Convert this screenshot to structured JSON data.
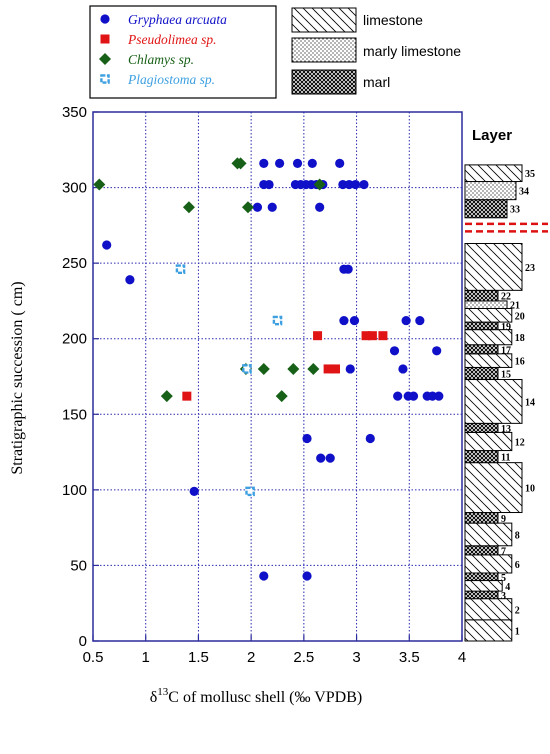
{
  "chart_data": {
    "type": "scatter",
    "title": "",
    "xlabel_prefix": "δ",
    "xlabel_sup": "13",
    "xlabel_rest": "C of mollusc shell (‰ VPDB)",
    "ylabel": "Stratigraphic succession ( cm)",
    "xlim": [
      0.5,
      4
    ],
    "ylim": [
      0,
      350
    ],
    "xticks": [
      "0.5",
      "1",
      "1.5",
      "2",
      "2.5",
      "3",
      "3.5",
      "4"
    ],
    "yticks": [
      "0",
      "50",
      "100",
      "150",
      "200",
      "250",
      "300",
      "350"
    ],
    "grid": true,
    "legend_position": "top-left",
    "series": [
      {
        "name": "Gryphaea arcuata",
        "marker": "circle",
        "color": "#1010c8",
        "points": [
          [
            0.63,
            262
          ],
          [
            0.85,
            239
          ],
          [
            1.46,
            99
          ],
          [
            2.12,
            43
          ],
          [
            2.53,
            43
          ],
          [
            2.53,
            134
          ],
          [
            2.66,
            121
          ],
          [
            2.75,
            121
          ],
          [
            3.13,
            134
          ],
          [
            2.06,
            287
          ],
          [
            2.2,
            287
          ],
          [
            2.65,
            287
          ],
          [
            2.12,
            302
          ],
          [
            2.17,
            302
          ],
          [
            2.42,
            302
          ],
          [
            2.47,
            302
          ],
          [
            2.52,
            302
          ],
          [
            2.57,
            302
          ],
          [
            2.62,
            302
          ],
          [
            2.68,
            302
          ],
          [
            2.87,
            302
          ],
          [
            2.93,
            302
          ],
          [
            2.99,
            302
          ],
          [
            3.07,
            302
          ],
          [
            2.12,
            316
          ],
          [
            2.27,
            316
          ],
          [
            2.44,
            316
          ],
          [
            2.58,
            316
          ],
          [
            2.84,
            316
          ],
          [
            2.88,
            246
          ],
          [
            2.92,
            246
          ],
          [
            2.88,
            212
          ],
          [
            2.98,
            212
          ],
          [
            3.47,
            212
          ],
          [
            3.6,
            212
          ],
          [
            3.36,
            192
          ],
          [
            3.76,
            192
          ],
          [
            3.44,
            180
          ],
          [
            2.94,
            180
          ],
          [
            3.39,
            162
          ],
          [
            3.49,
            162
          ],
          [
            3.54,
            162
          ],
          [
            3.67,
            162
          ],
          [
            3.72,
            162
          ],
          [
            3.78,
            162
          ]
        ]
      },
      {
        "name": "Pseudolimea sp.",
        "marker": "square",
        "color": "#e01414",
        "points": [
          [
            1.39,
            162
          ],
          [
            2.63,
            202
          ],
          [
            2.73,
            180
          ],
          [
            2.8,
            180
          ],
          [
            3.09,
            202
          ],
          [
            3.15,
            202
          ],
          [
            3.25,
            202
          ]
        ]
      },
      {
        "name": "Chlamys sp.",
        "marker": "diamond",
        "color": "#176017",
        "points": [
          [
            0.56,
            302
          ],
          [
            1.2,
            162
          ],
          [
            1.41,
            287
          ],
          [
            1.87,
            316
          ],
          [
            1.9,
            316
          ],
          [
            1.95,
            180
          ],
          [
            1.97,
            287
          ],
          [
            2.12,
            180
          ],
          [
            2.29,
            162
          ],
          [
            2.4,
            180
          ],
          [
            2.59,
            180
          ],
          [
            2.65,
            302
          ]
        ]
      },
      {
        "name": "Plagiostoma sp.",
        "marker": "open-square",
        "color": "#3ea0e0",
        "points": [
          [
            1.33,
            246
          ],
          [
            1.96,
            180
          ],
          [
            1.99,
            99
          ],
          [
            2.25,
            212
          ]
        ]
      }
    ]
  },
  "lithology_legend": {
    "limestone": "limestone",
    "marly_limestone": "marly limestone",
    "marl": "marl"
  },
  "stratigraphic_column": {
    "title": "Layer",
    "colors": {
      "limestone": "#000000",
      "marly_limestone": "#000000",
      "marl": "#000000",
      "boundary": "#dd1111"
    },
    "layers": [
      {
        "num": "1",
        "litho": "limestone",
        "bottom": 0,
        "top": 14,
        "extent": 0.78
      },
      {
        "num": "2",
        "litho": "limestone",
        "bottom": 14,
        "top": 28,
        "extent": 0.78
      },
      {
        "num": "3",
        "litho": "marl",
        "bottom": 28,
        "top": 33,
        "extent": 0.55
      },
      {
        "num": "4",
        "litho": "limestone",
        "bottom": 33,
        "top": 40,
        "extent": 0.62
      },
      {
        "num": "5",
        "litho": "marl",
        "bottom": 40,
        "top": 45,
        "extent": 0.55
      },
      {
        "num": "6",
        "litho": "limestone",
        "bottom": 45,
        "top": 57,
        "extent": 0.78
      },
      {
        "num": "7",
        "litho": "marl",
        "bottom": 57,
        "top": 63,
        "extent": 0.55
      },
      {
        "num": "8",
        "litho": "limestone",
        "bottom": 63,
        "top": 78,
        "extent": 0.78
      },
      {
        "num": "9",
        "litho": "marl",
        "bottom": 78,
        "top": 85,
        "extent": 0.55
      },
      {
        "num": "10",
        "litho": "limestone",
        "bottom": 85,
        "top": 118,
        "extent": 0.95
      },
      {
        "num": "11",
        "litho": "marl",
        "bottom": 118,
        "top": 126,
        "extent": 0.55
      },
      {
        "num": "12",
        "litho": "limestone",
        "bottom": 126,
        "top": 138,
        "extent": 0.78
      },
      {
        "num": "13",
        "litho": "marl",
        "bottom": 138,
        "top": 144,
        "extent": 0.55
      },
      {
        "num": "14",
        "litho": "limestone",
        "bottom": 144,
        "top": 173,
        "extent": 0.95
      },
      {
        "num": "15",
        "litho": "marl",
        "bottom": 173,
        "top": 181,
        "extent": 0.55
      },
      {
        "num": "16",
        "litho": "limestone",
        "bottom": 181,
        "top": 190,
        "extent": 0.78
      },
      {
        "num": "17",
        "litho": "marl",
        "bottom": 190,
        "top": 196,
        "extent": 0.55
      },
      {
        "num": "18",
        "litho": "limestone",
        "bottom": 196,
        "top": 206,
        "extent": 0.78
      },
      {
        "num": "19",
        "litho": "marl",
        "bottom": 206,
        "top": 211,
        "extent": 0.55
      },
      {
        "num": "20",
        "litho": "limestone",
        "bottom": 211,
        "top": 220,
        "extent": 0.78
      },
      {
        "num": "21",
        "litho": "marly_limestone",
        "bottom": 220,
        "top": 225,
        "extent": 0.7
      },
      {
        "num": "22",
        "litho": "marl",
        "bottom": 225,
        "top": 232,
        "extent": 0.55
      },
      {
        "num": "23",
        "litho": "limestone",
        "bottom": 232,
        "top": 263,
        "extent": 0.95
      },
      {
        "num": "33",
        "litho": "marl",
        "bottom": 280,
        "top": 292,
        "extent": 0.7
      },
      {
        "num": "34",
        "litho": "marly_limestone",
        "bottom": 292,
        "top": 304,
        "extent": 0.85
      },
      {
        "num": "35",
        "litho": "limestone",
        "bottom": 304,
        "top": 315,
        "extent": 0.95
      }
    ],
    "boundaries": [
      271,
      276
    ]
  }
}
